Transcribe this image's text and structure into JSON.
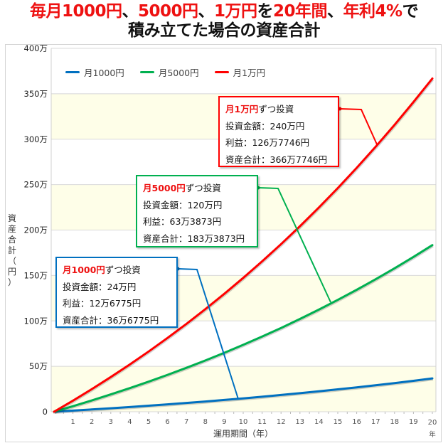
{
  "title": {
    "line1_parts": [
      {
        "text": "毎月1000円",
        "red": true
      },
      {
        "text": "、",
        "red": false
      },
      {
        "text": "5000円",
        "red": true
      },
      {
        "text": "、",
        "red": false
      },
      {
        "text": "1万円",
        "red": true
      },
      {
        "text": "を",
        "red": false
      },
      {
        "text": "20年間",
        "red": true
      },
      {
        "text": "、",
        "red": false
      },
      {
        "text": "年利4%",
        "red": true
      },
      {
        "text": "で",
        "red": false
      }
    ],
    "line2": "積み立てた場合の資産合計"
  },
  "legend": [
    {
      "label": "月1000円",
      "color": "#0070c0"
    },
    {
      "label": "月5000円",
      "color": "#00b050"
    },
    {
      "label": "月1万円",
      "color": "#ff0000"
    }
  ],
  "annotations": [
    {
      "series": "月1万円",
      "color": "#ff0000",
      "heading_hl": "月1万円",
      "heading_rest": "ずつ投資",
      "lines": [
        "投資金額：240万円",
        "利益：126万7746円",
        "資産合計：366万7746円"
      ]
    },
    {
      "series": "月5000円",
      "color": "#00b050",
      "heading_hl": "月5000円",
      "heading_rest": "ずつ投資",
      "lines": [
        "投資金額：120万円",
        "利益：63万3873円",
        "資産合計：183万3873円"
      ]
    },
    {
      "series": "月1000円",
      "color": "#0070c0",
      "heading_hl": "月1000円",
      "heading_rest": "ずつ投資",
      "lines": [
        "投資金額：24万円",
        "利益：12万6775円",
        "資産合計：36万6775円"
      ]
    }
  ],
  "axes": {
    "ylabel": "資産合計（円）",
    "xlabel": "運用期間（年）",
    "x_last_unit": "年"
  },
  "chart_data": {
    "type": "line",
    "title": "毎月1000円、5000円、1万円を20年間、年利4%で積み立てた場合の資産合計",
    "xlabel": "運用期間（年）",
    "ylabel": "資産合計（円）",
    "x": [
      0,
      1,
      2,
      3,
      4,
      5,
      6,
      7,
      8,
      9,
      10,
      11,
      12,
      13,
      14,
      15,
      16,
      17,
      18,
      19,
      20
    ],
    "x_tick_labels": [
      "1",
      "2",
      "3",
      "4",
      "5",
      "6",
      "7",
      "8",
      "9",
      "10",
      "11",
      "12",
      "13",
      "14",
      "15",
      "16",
      "17",
      "18",
      "19",
      "20"
    ],
    "y_tick_labels": [
      "0",
      "50万",
      "100万",
      "150万",
      "200万",
      "250万",
      "300万",
      "350万",
      "400万"
    ],
    "y_ticks": [
      0,
      500000,
      1000000,
      1500000,
      2000000,
      2500000,
      3000000,
      3500000,
      4000000
    ],
    "ylim": [
      0,
      4000000
    ],
    "xlim": [
      0,
      20
    ],
    "grid": true,
    "alternating_band_color": "#fefee8",
    "legend_position": "top-left",
    "series": [
      {
        "name": "月1000円",
        "color": "#0070c0",
        "values": [
          0,
          12220,
          24940,
          38180,
          51960,
          66300,
          81230,
          96770,
          112940,
          129770,
          147290,
          165520,
          184500,
          204250,
          224810,
          246210,
          268480,
          291660,
          315780,
          340890,
          366775
        ]
      },
      {
        "name": "月5000円",
        "color": "#00b050",
        "values": [
          0,
          61100,
          124700,
          190900,
          259800,
          331500,
          406150,
          483850,
          564700,
          648850,
          736450,
          827600,
          922500,
          1021250,
          1124050,
          1231050,
          1342400,
          1458300,
          1578900,
          1704450,
          1833873
        ]
      },
      {
        "name": "月1万円",
        "color": "#ff0000",
        "values": [
          0,
          122200,
          249400,
          381800,
          519600,
          663000,
          812300,
          967700,
          1129400,
          1297700,
          1472900,
          1655200,
          1845000,
          2042500,
          2248100,
          2462100,
          2684800,
          2916600,
          3157800,
          3408900,
          3667746
        ]
      }
    ]
  }
}
